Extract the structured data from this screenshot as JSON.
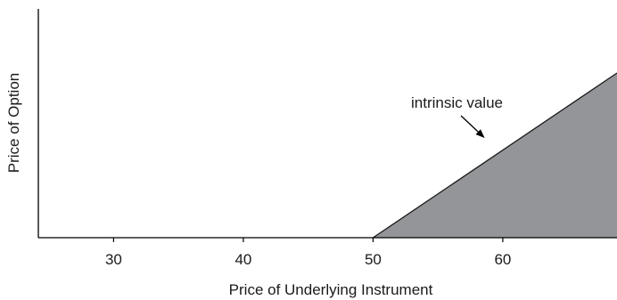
{
  "chart_data": {
    "type": "area",
    "title": "",
    "xlabel": "Price of Underlying Instrument",
    "ylabel": "Price of Option",
    "xlim": [
      24.2,
      68.8
    ],
    "ylim": [
      0,
      12.5
    ],
    "xticks": [
      30,
      40,
      50,
      60
    ],
    "yticks": [],
    "grid": false,
    "series": [
      {
        "x": [
          50,
          68.8
        ],
        "y": [
          0,
          12.5
        ],
        "fill": "#939598",
        "stroke": "#1a1a1a"
      }
    ],
    "annotations": [
      {
        "text": "intrinsic value",
        "arrow_target": [
          58.6,
          7.57
        ]
      }
    ]
  }
}
